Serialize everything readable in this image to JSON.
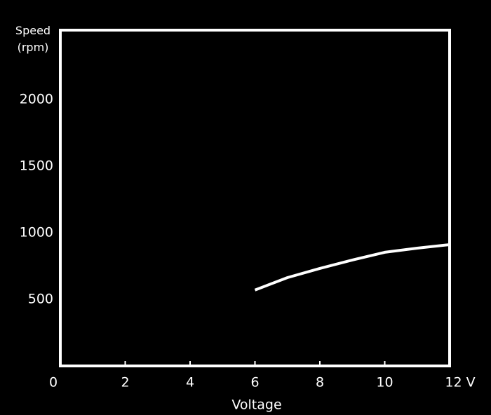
{
  "chart_data": {
    "type": "line",
    "x": [
      6,
      7,
      8,
      9,
      10,
      11,
      12
    ],
    "values": [
      570,
      663,
      732,
      795,
      853,
      884,
      910
    ],
    "color": "#ffffff",
    "xlabel": "Voltage",
    "ylabel": "Speed (rpm)",
    "xlim": [
      0,
      12
    ],
    "ylim": [
      0,
      2520
    ],
    "xticks": [
      0,
      2,
      4,
      6,
      8,
      10,
      {
        "value": 12,
        "label": "12 V"
      }
    ],
    "yticks": [
      500,
      1000,
      1500,
      2000
    ],
    "grid": true
  }
}
